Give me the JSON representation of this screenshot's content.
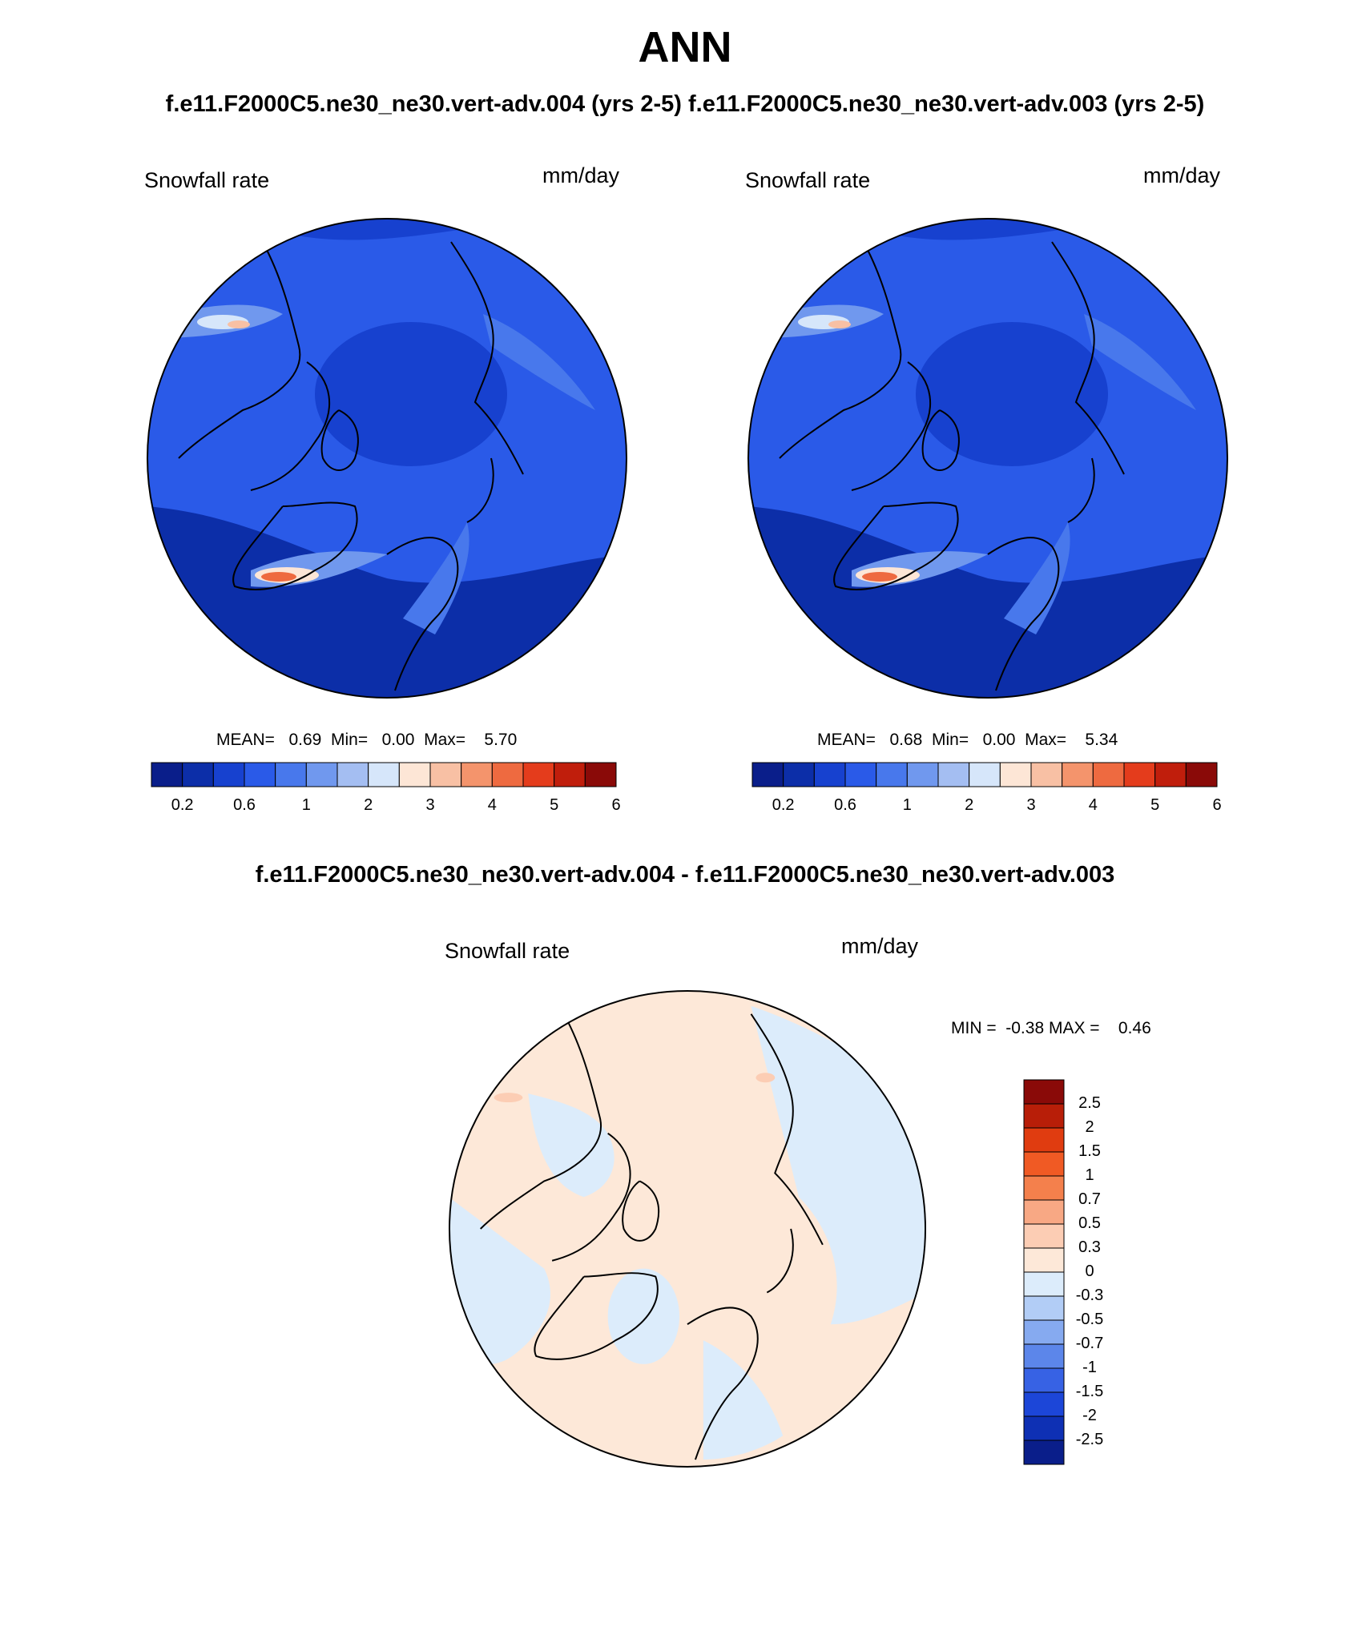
{
  "figure": {
    "title": "ANN",
    "runs_line": "f.e11.F2000C5.ne30_ne30.vert-adv.004 (yrs 2-5)  f.e11.F2000C5.ne30_ne30.vert-adv.003 (yrs 2-5)",
    "diff_title": "f.e11.F2000C5.ne30_ne30.vert-adv.004 - f.e11.F2000C5.ne30_ne30.vert-adv.003"
  },
  "panels": [
    {
      "variable": "Snowfall rate",
      "units": "mm/day",
      "stats_text": "MEAN=   0.69  Min=   0.00  Max=    5.70",
      "mean": 0.69,
      "min": 0.0,
      "max": 5.7
    },
    {
      "variable": "Snowfall rate",
      "units": "mm/day",
      "stats_text": "MEAN=   0.68  Min=   0.00  Max=    5.34",
      "mean": 0.68,
      "min": 0.0,
      "max": 5.34
    }
  ],
  "diff_panel": {
    "variable": "Snowfall rate",
    "units": "mm/day",
    "stats_text": "MIN =  -0.38 MAX =    0.46",
    "min": -0.38,
    "max": 0.46
  },
  "colorbar_main": {
    "orientation": "horizontal",
    "colors": [
      "#0a1e8a",
      "#0c2ea8",
      "#1741cf",
      "#2a5ae8",
      "#4878ec",
      "#7098ee",
      "#a4bef2",
      "#d6e6fa",
      "#fde6d6",
      "#f8c0a4",
      "#f4946c",
      "#ee6a40",
      "#e43c1c",
      "#c01e0c",
      "#8a0a08"
    ],
    "tick_labels": [
      "0.2",
      "0.6",
      "1",
      "2",
      "3",
      "4",
      "5",
      "6"
    ]
  },
  "colorbar_diff": {
    "orientation": "vertical",
    "colors": [
      "#8a0a08",
      "#b81e08",
      "#e03c10",
      "#f05a24",
      "#f4804c",
      "#f8a884",
      "#fccdb4",
      "#fde8d8",
      "#dcecfb",
      "#b2cdf6",
      "#86aaf0",
      "#5c86ea",
      "#3762e4",
      "#1c46d8",
      "#0e30b4",
      "#0a1e8a"
    ],
    "tick_labels": [
      "2.5",
      "2",
      "1.5",
      "1",
      "0.7",
      "0.5",
      "0.3",
      "0",
      "-0.3",
      "-0.5",
      "-0.7",
      "-1",
      "-1.5",
      "-2",
      "-2.5"
    ]
  }
}
